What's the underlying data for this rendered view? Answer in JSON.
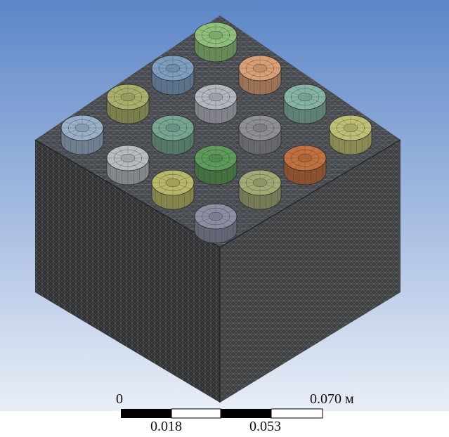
{
  "colors": {
    "background_top": "#5c86c8",
    "background_bottom": "#e9eef7",
    "mesh_top": "#45484c",
    "mesh_left": "#303234",
    "mesh_right": "#3f4143",
    "mesh_line": "#8e9296"
  },
  "cylinders": [
    {
      "name": "cyl-green-1",
      "color": "#8fbf7a"
    },
    {
      "name": "cyl-blue-1",
      "color": "#7e9ec0"
    },
    {
      "name": "cyl-orange-1",
      "color": "#d8a074"
    },
    {
      "name": "cyl-olive-1",
      "color": "#a9b06a"
    },
    {
      "name": "cyl-grey-1",
      "color": "#b4b6c0"
    },
    {
      "name": "cyl-teal-1",
      "color": "#86b4a4"
    },
    {
      "name": "cyl-blue-2",
      "color": "#98b0c8"
    },
    {
      "name": "cyl-teal-2",
      "color": "#76a692"
    },
    {
      "name": "cyl-grey-2",
      "color": "#8e9096"
    },
    {
      "name": "cyl-olive-2",
      "color": "#c0c074"
    },
    {
      "name": "cyl-grey-3",
      "color": "#b8bcc0"
    },
    {
      "name": "cyl-green-2",
      "color": "#5e9a5a"
    },
    {
      "name": "cyl-orange-2",
      "color": "#c2703e"
    },
    {
      "name": "cyl-olive-3",
      "color": "#b8b868"
    },
    {
      "name": "cyl-olive-4",
      "color": "#a4aa76"
    },
    {
      "name": "cyl-grey-4",
      "color": "#8c8ea2"
    }
  ],
  "scale_bar": {
    "label_start": "0",
    "label_end": "0.070 м",
    "label_mid1": "0.018",
    "label_mid2": "0.053"
  }
}
